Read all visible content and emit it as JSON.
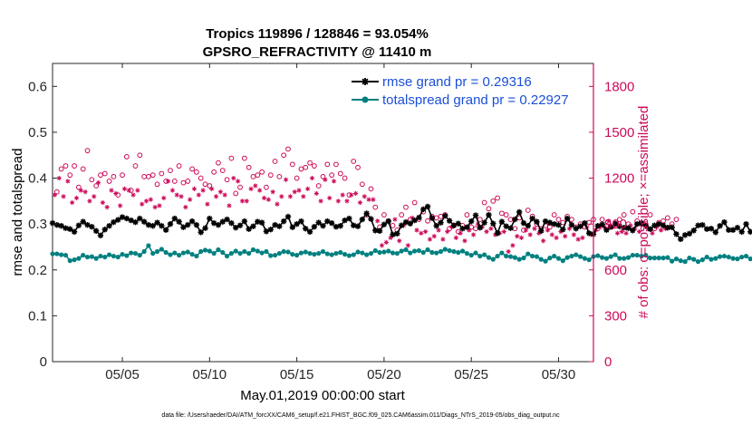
{
  "chart_data": {
    "type": "line",
    "title_line1": "Tropics 119896 / 128846 = 93.054%",
    "title_line2": "GPSRO_REFRACTIVITY @ 11410 m",
    "xlabel": "May.01,2019 00:00:00 start",
    "ylabel": "rmse and totalspread",
    "ylabel_right": "# of obs: o=possible; ×=assimilated",
    "xlim": [
      1,
      32
    ],
    "ylim": [
      0,
      0.65
    ],
    "ylim_right": [
      0,
      1950
    ],
    "x_ticks": [
      5,
      10,
      15,
      20,
      25,
      30
    ],
    "x_tick_labels": [
      "05/05",
      "05/10",
      "05/15",
      "05/20",
      "05/25",
      "05/30"
    ],
    "y_ticks": [
      0,
      0.1,
      0.2,
      0.3,
      0.4,
      0.5,
      0.6
    ],
    "y_tick_labels": [
      "0",
      "0.1",
      "0.2",
      "0.3",
      "0.4",
      "0.5",
      "0.6"
    ],
    "y_right_ticks": [
      0,
      300,
      600,
      900,
      1200,
      1500,
      1800
    ],
    "y_right_tick_labels": [
      "0",
      "300",
      "600",
      "900",
      "1200",
      "1500",
      "1800"
    ],
    "grid": false,
    "legend_position": "top-right",
    "footnote": "data file: /Users/raeder/DAI/ATM_forcXX/CAM6_setup/f.e21.FHIST_BGC.f09_025.CAM6assim.011/Diags_NTrS_2019-05/obs_diag_output.nc",
    "colors": {
      "rmse": "#000000",
      "spread": "#008080",
      "obs": "#cc0a5a"
    },
    "series": [
      {
        "name": "rmse grand pr = 0.29316",
        "marker": "*",
        "color": "#000000",
        "start_day": 1,
        "step_days": 0.25,
        "values": [
          0.302,
          0.298,
          0.296,
          0.291,
          0.289,
          0.283,
          0.297,
          0.305,
          0.298,
          0.294,
          0.285,
          0.275,
          0.288,
          0.296,
          0.304,
          0.309,
          0.315,
          0.312,
          0.308,
          0.304,
          0.312,
          0.305,
          0.298,
          0.296,
          0.303,
          0.296,
          0.287,
          0.3,
          0.312,
          0.305,
          0.293,
          0.298,
          0.306,
          0.298,
          0.282,
          0.291,
          0.312,
          0.302,
          0.298,
          0.305,
          0.31,
          0.302,
          0.292,
          0.297,
          0.306,
          0.289,
          0.295,
          0.305,
          0.303,
          0.284,
          0.288,
          0.298,
          0.295,
          0.306,
          0.316,
          0.293,
          0.3,
          0.306,
          0.29,
          0.283,
          0.294,
          0.303,
          0.296,
          0.306,
          0.302,
          0.294,
          0.296,
          0.308,
          0.312,
          0.297,
          0.295,
          0.31,
          0.323,
          0.311,
          0.286,
          0.285,
          0.299,
          0.306,
          0.277,
          0.279,
          0.297,
          0.304,
          0.301,
          0.308,
          0.314,
          0.332,
          0.338,
          0.313,
          0.296,
          0.303,
          0.318,
          0.307,
          0.297,
          0.301,
          0.29,
          0.293,
          0.306,
          0.319,
          0.292,
          0.303,
          0.32,
          0.301,
          0.28,
          0.305,
          0.295,
          0.291,
          0.31,
          0.326,
          0.302,
          0.296,
          0.312,
          0.305,
          0.285,
          0.306,
          0.303,
          0.3,
          0.298,
          0.288,
          0.312,
          0.298,
          0.29,
          0.295,
          0.302,
          0.28,
          0.278,
          0.296,
          0.299,
          0.287,
          0.294,
          0.301,
          0.295,
          0.292,
          0.291,
          0.286,
          0.3,
          0.302,
          0.296,
          0.289,
          0.297,
          0.3,
          0.297,
          0.292,
          0.293,
          0.278,
          0.267,
          0.276,
          0.279,
          0.286,
          0.297,
          0.298,
          0.289,
          0.29,
          0.282,
          0.296,
          0.304,
          0.287,
          0.287,
          0.292,
          0.283,
          0.3,
          0.283,
          0.29,
          0.279,
          0.271,
          0.287,
          0.283,
          0.292,
          0.285,
          0.301,
          0.305,
          0.283,
          0.295,
          0.272,
          0.305,
          0.298,
          0.326,
          0.314,
          0.292,
          0.281,
          0.296,
          0.303,
          0.284,
          0.268,
          0.288,
          0.306,
          0.317,
          0.303,
          0.295,
          0.286,
          0.299,
          0.29,
          0.288,
          0.279,
          0.282,
          0.273,
          0.262,
          0.274,
          0.282,
          0.306,
          0.311,
          0.295,
          0.282,
          0.277,
          0.292,
          0.286,
          0.297,
          0.328,
          0.293,
          0.307,
          0.27,
          0.31,
          0.291,
          0.295,
          0.281,
          0.292,
          0.285,
          0.287,
          0.296,
          0.3,
          0.286,
          0.289,
          0.288,
          0.292,
          0.296,
          0.283,
          0.285,
          0.292,
          0.297,
          0.279,
          0.298,
          0.302,
          0.296,
          0.297,
          0.286,
          0.288,
          0.291,
          0.301,
          0.287,
          0.281,
          0.299,
          0.273,
          0.297,
          0.284,
          0.279,
          0.29,
          0.307,
          0.282,
          0.279,
          0.292,
          0.27,
          0.296,
          0.283,
          0.272,
          0.281,
          0.301,
          0.282,
          0.287,
          0.299,
          0.287,
          0.28,
          0.289,
          0.289,
          0.301,
          0.278,
          0.288,
          0.286,
          0.295,
          0.281,
          0.286,
          0.292,
          0.289,
          0.292,
          0.292,
          0.295,
          0.287,
          0.297,
          0.284,
          0.291,
          0.282,
          0.278,
          0.294,
          0.283,
          0.284
        ]
      },
      {
        "name": "totalspread grand pr = 0.22927",
        "marker": "o",
        "color": "#008080",
        "start_day": 1,
        "step_days": 0.25,
        "values": [
          0.235,
          0.235,
          0.233,
          0.232,
          0.22,
          0.222,
          0.225,
          0.232,
          0.228,
          0.229,
          0.225,
          0.23,
          0.228,
          0.233,
          0.23,
          0.228,
          0.234,
          0.231,
          0.237,
          0.236,
          0.232,
          0.24,
          0.253,
          0.236,
          0.24,
          0.245,
          0.238,
          0.233,
          0.237,
          0.232,
          0.237,
          0.239,
          0.234,
          0.23,
          0.24,
          0.243,
          0.241,
          0.236,
          0.244,
          0.238,
          0.23,
          0.236,
          0.241,
          0.236,
          0.24,
          0.236,
          0.244,
          0.241,
          0.237,
          0.24,
          0.231,
          0.232,
          0.236,
          0.24,
          0.239,
          0.234,
          0.232,
          0.237,
          0.239,
          0.236,
          0.234,
          0.236,
          0.24,
          0.235,
          0.233,
          0.236,
          0.238,
          0.234,
          0.231,
          0.233,
          0.239,
          0.237,
          0.233,
          0.236,
          0.242,
          0.238,
          0.239,
          0.241,
          0.237,
          0.236,
          0.241,
          0.244,
          0.237,
          0.241,
          0.242,
          0.238,
          0.244,
          0.238,
          0.237,
          0.24,
          0.245,
          0.242,
          0.24,
          0.238,
          0.241,
          0.236,
          0.232,
          0.237,
          0.23,
          0.233,
          0.227,
          0.223,
          0.23,
          0.237,
          0.23,
          0.229,
          0.227,
          0.223,
          0.226,
          0.235,
          0.23,
          0.229,
          0.223,
          0.219,
          0.226,
          0.23,
          0.225,
          0.22,
          0.227,
          0.23,
          0.233,
          0.229,
          0.225,
          0.222,
          0.229,
          0.231,
          0.227,
          0.225,
          0.229,
          0.233,
          0.225,
          0.225,
          0.227,
          0.232,
          0.232,
          0.23,
          0.232,
          0.226,
          0.226,
          0.226,
          0.226,
          0.227,
          0.219,
          0.224,
          0.22,
          0.218,
          0.226,
          0.223,
          0.218,
          0.222,
          0.228,
          0.223,
          0.225,
          0.229,
          0.23,
          0.228,
          0.225,
          0.224,
          0.228,
          0.23,
          0.224,
          0.219,
          0.22,
          0.224,
          0.227,
          0.225,
          0.226,
          0.224,
          0.226,
          0.221,
          0.217,
          0.218,
          0.225,
          0.224,
          0.228,
          0.224,
          0.223,
          0.227,
          0.22,
          0.221,
          0.225,
          0.229,
          0.231,
          0.228,
          0.23,
          0.226,
          0.228,
          0.226,
          0.23,
          0.224,
          0.222,
          0.227,
          0.221,
          0.225,
          0.223,
          0.222,
          0.218,
          0.221,
          0.225,
          0.218,
          0.223,
          0.223,
          0.225,
          0.221,
          0.22,
          0.218,
          0.219,
          0.218,
          0.221,
          0.218,
          0.216,
          0.22,
          0.223,
          0.221,
          0.219,
          0.221,
          0.22,
          0.222,
          0.221,
          0.22,
          0.221,
          0.217,
          0.222,
          0.221,
          0.213,
          0.215,
          0.22,
          0.219,
          0.216,
          0.218,
          0.218,
          0.217,
          0.21,
          0.215,
          0.219,
          0.216,
          0.214,
          0.218,
          0.214,
          0.213,
          0.211,
          0.217,
          0.22,
          0.216,
          0.212,
          0.212,
          0.217,
          0.219,
          0.212,
          0.215,
          0.221,
          0.219,
          0.213,
          0.214,
          0.212,
          0.213,
          0.214,
          0.215,
          0.213,
          0.218,
          0.216,
          0.215,
          0.218,
          0.221,
          0.217,
          0.217,
          0.218,
          0.222,
          0.219,
          0.221,
          0.216,
          0.215,
          0.217,
          0.218,
          0.221,
          0.22,
          0.218,
          0.216,
          0.218
        ]
      }
    ],
    "obs_counts": {
      "possible": {
        "marker": "o",
        "start_day": 1.25,
        "step_days": 0.25,
        "values": [
          1110,
          1260,
          1280,
          1220,
          1280,
          1140,
          1260,
          1380,
          1190,
          1150,
          1220,
          1230,
          1180,
          1210,
          1090,
          1220,
          1340,
          1120,
          1280,
          1350,
          1210,
          1210,
          1220,
          1160,
          1230,
          1180,
          1250,
          1180,
          1280,
          1170,
          1180,
          1260,
          1240,
          1200,
          1160,
          1150,
          1240,
          1300,
          1250,
          1190,
          1330,
          1100,
          1140,
          1330,
          1270,
          1210,
          1220,
          1240,
          1140,
          1220,
          1310,
          1210,
          1350,
          1390,
          1290,
          1200,
          1260,
          1270,
          1300,
          1280,
          1150,
          1210,
          1290,
          1220,
          1290,
          1230,
          1200,
          1090,
          1310,
          1270,
          1160,
          960,
          1130,
          1010,
          880,
          960,
          920,
          890,
          860,
          960,
          1010,
          930,
          1040,
          930,
          980,
          920,
          950,
          940,
          950,
          960,
          870,
          890,
          850,
          890,
          960,
          880,
          870,
          930,
          1040,
          1000,
          1050,
          1070,
          970,
          960,
          930,
          870,
          940,
          860,
          990,
          950,
          900,
          870,
          890,
          880,
          960,
          930,
          910,
          950,
          930,
          880,
          900,
          880,
          910,
          930,
          870,
          930,
          890,
          880,
          900,
          930,
          960,
          900,
          980,
          920,
          900,
          900,
          960,
          870,
          910,
          920,
          940,
          900,
          930
        ]
      },
      "assimilated": {
        "marker": "*",
        "start_day": 1.125,
        "step_days": 0.25,
        "values": [
          1090,
          1200,
          1080,
          1180,
          1040,
          1070,
          1120,
          1110,
          1050,
          1080,
          1170,
          1040,
          1010,
          1120,
          1100,
          1020,
          1130,
          1120,
          1090,
          1120,
          1030,
          1050,
          1060,
          1010,
          1020,
          1070,
          1180,
          1120,
          1090,
          1080,
          1010,
          1060,
          1130,
          1090,
          1120,
          1030,
          1130,
          1080,
          1110,
          1090,
          1020,
          1200,
          1180,
          1050,
          1050,
          1130,
          1150,
          1120,
          1070,
          1060,
          1110,
          1030,
          1080,
          1190,
          1080,
          1110,
          1120,
          1080,
          1130,
          1200,
          1100,
          1050,
          1190,
          1070,
          1180,
          1050,
          1090,
          1050,
          1090,
          1100,
          1040,
          1080,
          1060,
          1060,
          920,
          760,
          780,
          810,
          930,
          790,
          890,
          760,
          940,
          860,
          840,
          850,
          800,
          820,
          860,
          800,
          850,
          880,
          810,
          840,
          790,
          860,
          830,
          900,
          880,
          850,
          870,
          830,
          840,
          850,
          720,
          760,
          820,
          810,
          860,
          830,
          870,
          840,
          790,
          860,
          830,
          810,
          850,
          820,
          870,
          830,
          800,
          810,
          880,
          830,
          860,
          880,
          880,
          920,
          880,
          840,
          850,
          840,
          890,
          870,
          850,
          900,
          870,
          840,
          880,
          860,
          870,
          880
        ]
      }
    }
  }
}
